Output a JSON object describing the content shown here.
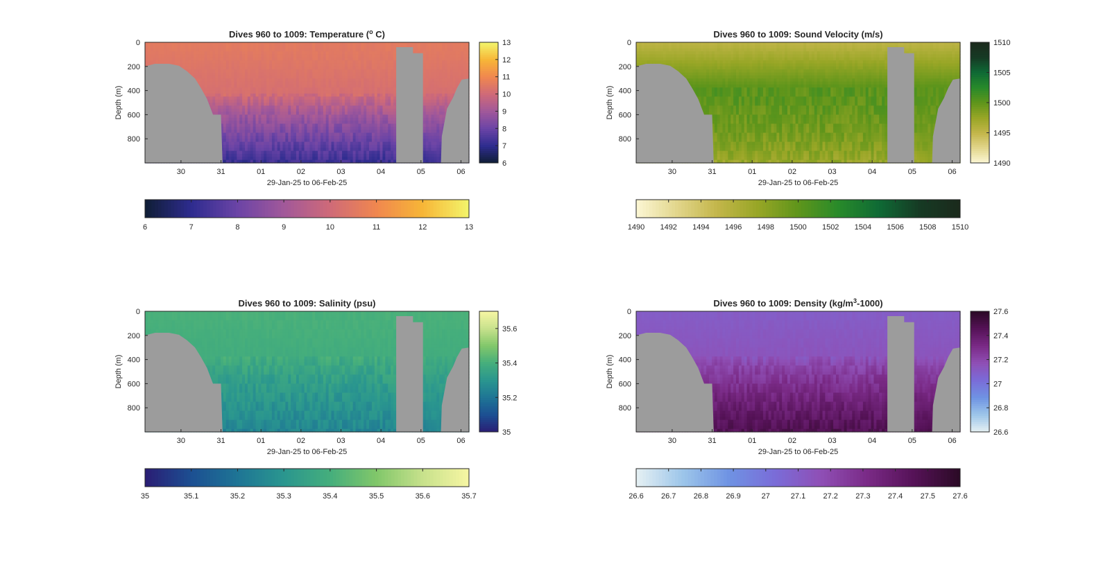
{
  "figure": {
    "background": "#ffffff",
    "land_color": "#9c9c9c",
    "axis_color": "#262626"
  },
  "chart_data": [
    {
      "type": "heatmap",
      "id": "temperature",
      "title_prefix": "Dives 960 to 1009: Temperature (",
      "title_sup": "o",
      "title_suffix": " C)",
      "xlabel": "29-Jan-25 to 06-Feb-25",
      "ylabel": "Depth (m)",
      "x_tick_labels": [
        "30",
        "31",
        "01",
        "02",
        "03",
        "04",
        "05",
        "06"
      ],
      "xlim": [
        0,
        8.1
      ],
      "x_ticks": [
        0.9,
        1.9,
        2.9,
        3.9,
        4.9,
        5.9,
        6.9,
        7.9
      ],
      "ylim": [
        0,
        1000
      ],
      "y_ticks": [
        0,
        200,
        400,
        600,
        800
      ],
      "y_tick_labels": [
        "0",
        "200",
        "400",
        "600",
        "800"
      ],
      "colorbar_range": [
        6,
        13
      ],
      "colorbar_ticks": [
        6,
        7,
        8,
        9,
        10,
        11,
        12,
        13
      ],
      "colorbar_tick_labels": [
        "6",
        "7",
        "8",
        "9",
        "10",
        "11",
        "12",
        "13"
      ],
      "colormap": [
        "#0f1e35",
        "#2e2c8f",
        "#6b44a6",
        "#a1589a",
        "#cf6a78",
        "#f0874f",
        "#f7b637",
        "#f3f56b"
      ],
      "surface_value": 10.6,
      "deep_value": 7.2,
      "mix_depth": 420,
      "grid": false
    },
    {
      "type": "heatmap",
      "id": "sound_velocity",
      "title_prefix": "Dives 960 to 1009: Sound Velocity (m/s)",
      "title_sup": "",
      "title_suffix": "",
      "xlabel": "29-Jan-25 to 06-Feb-25",
      "ylabel": "Depth (m)",
      "x_tick_labels": [
        "30",
        "31",
        "01",
        "02",
        "03",
        "04",
        "05",
        "06"
      ],
      "xlim": [
        0,
        8.1
      ],
      "x_ticks": [
        0.9,
        1.9,
        2.9,
        3.9,
        4.9,
        5.9,
        6.9,
        7.9
      ],
      "ylim": [
        0,
        1000
      ],
      "y_ticks": [
        0,
        200,
        400,
        600,
        800
      ],
      "y_tick_labels": [
        "0",
        "200",
        "400",
        "600",
        "800"
      ],
      "colorbar_range": [
        1490,
        1510
      ],
      "colorbar_ticks": [
        1490,
        1495,
        1500,
        1505,
        1510
      ],
      "colorbar_tick_labels": [
        "1490",
        "1495",
        "1500",
        "1505",
        "1510"
      ],
      "hcolorbar_ticks": [
        1490,
        1492,
        1494,
        1496,
        1498,
        1500,
        1502,
        1504,
        1506,
        1508,
        1510
      ],
      "hcolorbar_tick_labels": [
        "1490",
        "1492",
        "1494",
        "1496",
        "1498",
        "1500",
        "1502",
        "1504",
        "1506",
        "1508",
        "1510"
      ],
      "colormap": [
        "#fcf7d5",
        "#e2d68c",
        "#c3b64a",
        "#98a626",
        "#5f951b",
        "#288a2a",
        "#0f6a35",
        "#163a24",
        "#1b2a1c"
      ],
      "surface_value": 1495.3,
      "mid_value": 1500.2,
      "deep_value": 1497.3,
      "mix_depth": 380,
      "grid": false
    },
    {
      "type": "heatmap",
      "id": "salinity",
      "title_prefix": "Dives 960 to 1009: Salinity (psu)",
      "title_sup": "",
      "title_suffix": "",
      "xlabel": "29-Jan-25 to 06-Feb-25",
      "ylabel": "Depth (m)",
      "x_tick_labels": [
        "30",
        "31",
        "01",
        "02",
        "03",
        "04",
        "05",
        "06"
      ],
      "xlim": [
        0,
        8.1
      ],
      "x_ticks": [
        0.9,
        1.9,
        2.9,
        3.9,
        4.9,
        5.9,
        6.9,
        7.9
      ],
      "ylim": [
        0,
        1000
      ],
      "y_ticks": [
        0,
        200,
        400,
        600,
        800
      ],
      "y_tick_labels": [
        "0",
        "200",
        "400",
        "600",
        "800"
      ],
      "colorbar_range": [
        35,
        35.7
      ],
      "colorbar_ticks": [
        35,
        35.2,
        35.4,
        35.6
      ],
      "colorbar_tick_labels": [
        "35",
        "35.2",
        "35.4",
        "35.6"
      ],
      "hcolorbar_ticks": [
        35,
        35.1,
        35.2,
        35.3,
        35.4,
        35.5,
        35.6,
        35.7
      ],
      "hcolorbar_tick_labels": [
        "35",
        "35.1",
        "35.2",
        "35.3",
        "35.4",
        "35.5",
        "35.6",
        "35.7"
      ],
      "colormap": [
        "#2a1d74",
        "#1c4f92",
        "#1e7595",
        "#2a968f",
        "#45ae7c",
        "#81c76a",
        "#c7e18c",
        "#f7f6a3"
      ],
      "surface_value": 35.41,
      "deep_value": 35.25,
      "mix_depth": 380,
      "grid": false
    },
    {
      "type": "heatmap",
      "id": "density",
      "title_prefix": "Dives 960 to 1009: Density (kg/m",
      "title_sup": "3",
      "title_suffix": "-1000)",
      "xlabel": "29-Jan-25 to 06-Feb-25",
      "ylabel": "Depth (m)",
      "x_tick_labels": [
        "30",
        "31",
        "01",
        "02",
        "03",
        "04",
        "05",
        "06"
      ],
      "xlim": [
        0,
        8.1
      ],
      "x_ticks": [
        0.9,
        1.9,
        2.9,
        3.9,
        4.9,
        5.9,
        6.9,
        7.9
      ],
      "ylim": [
        0,
        1000
      ],
      "y_ticks": [
        0,
        200,
        400,
        600,
        800
      ],
      "y_tick_labels": [
        "0",
        "200",
        "400",
        "600",
        "800"
      ],
      "colorbar_range": [
        26.6,
        27.6
      ],
      "colorbar_ticks": [
        26.6,
        26.8,
        27,
        27.2,
        27.4,
        27.6
      ],
      "colorbar_tick_labels": [
        "26.6",
        "26.8",
        "27",
        "27.2",
        "27.4",
        "27.6"
      ],
      "hcolorbar_ticks": [
        26.6,
        26.7,
        26.8,
        26.9,
        27,
        27.1,
        27.2,
        27.3,
        27.4,
        27.5,
        27.6
      ],
      "hcolorbar_tick_labels": [
        "26.6",
        "26.7",
        "26.8",
        "26.9",
        "27",
        "27.1",
        "27.2",
        "27.3",
        "27.4",
        "27.5",
        "27.6"
      ],
      "colormap": [
        "#e6f1f3",
        "#9dc6ea",
        "#6f93e3",
        "#7a6cd8",
        "#8f4fb5",
        "#7a2a86",
        "#551257",
        "#2b0a25"
      ],
      "surface_value": 27.1,
      "deep_value": 27.47,
      "mix_depth": 380,
      "grid": false
    }
  ]
}
